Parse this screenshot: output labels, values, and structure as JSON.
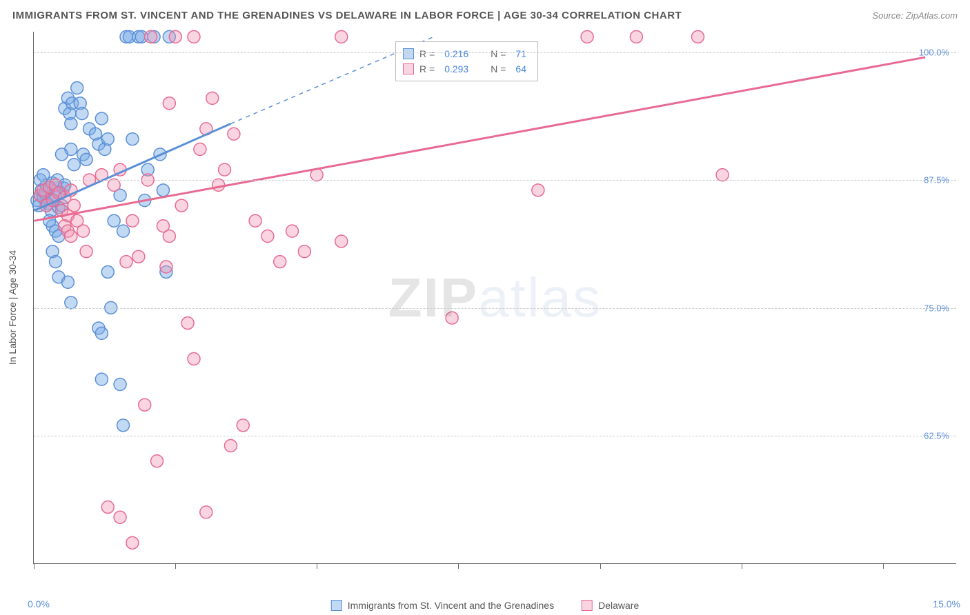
{
  "header": {
    "title": "IMMIGRANTS FROM ST. VINCENT AND THE GRENADINES VS DELAWARE IN LABOR FORCE | AGE 30-34 CORRELATION CHART",
    "source_label": "Source:",
    "source_name": "ZipAtlas.com"
  },
  "chart": {
    "type": "scatter",
    "background_color": "#ffffff",
    "grid_color": "#cccccc",
    "axis_color": "#666666",
    "y_axis_title": "In Labor Force | Age 30-34",
    "xlim": [
      0,
      15
    ],
    "ylim": [
      50,
      102
    ],
    "yticks": [
      62.5,
      75.0,
      87.5,
      100.0
    ],
    "ytick_labels": [
      "62.5%",
      "75.0%",
      "87.5%",
      "100.0%"
    ],
    "xtick_positions": [
      0,
      2.3,
      4.6,
      6.9,
      9.2,
      11.5,
      13.8
    ],
    "x_min_label": "0.0%",
    "x_max_label": "15.0%",
    "marker_radius": 9,
    "marker_stroke_width": 1.5,
    "trend_line_width": 3,
    "watermark_text_a": "ZIP",
    "watermark_text_b": "atlas"
  },
  "series": [
    {
      "key": "svg_immigrants",
      "label": "Immigrants from St. Vincent and the Grenadines",
      "fill_color": "rgba(120,170,230,0.45)",
      "stroke_color": "#5b8fd6",
      "r_value": "0.216",
      "n_value": "71",
      "trend": {
        "x1": 0,
        "y1": 84.5,
        "x2": 3.2,
        "y2": 93.0,
        "dash_extend_x": 6.5,
        "dash_extend_y": 101.5
      },
      "points": [
        [
          0.05,
          85.5
        ],
        [
          0.08,
          85.0
        ],
        [
          0.1,
          86.0
        ],
        [
          0.12,
          86.5
        ],
        [
          0.15,
          85.8
        ],
        [
          0.18,
          86.2
        ],
        [
          0.2,
          87.0
        ],
        [
          0.22,
          85.2
        ],
        [
          0.25,
          86.8
        ],
        [
          0.28,
          84.5
        ],
        [
          0.3,
          87.2
        ],
        [
          0.32,
          85.5
        ],
        [
          0.35,
          86.0
        ],
        [
          0.38,
          87.5
        ],
        [
          0.4,
          84.8
        ],
        [
          0.42,
          86.3
        ],
        [
          0.45,
          85.0
        ],
        [
          0.48,
          86.7
        ],
        [
          0.5,
          87.0
        ],
        [
          0.3,
          83.0
        ],
        [
          0.35,
          82.5
        ],
        [
          0.25,
          83.5
        ],
        [
          0.4,
          82.0
        ],
        [
          0.5,
          94.5
        ],
        [
          0.55,
          95.5
        ],
        [
          0.58,
          94.0
        ],
        [
          0.6,
          93.0
        ],
        [
          0.62,
          95.0
        ],
        [
          0.75,
          95.0
        ],
        [
          0.78,
          94.0
        ],
        [
          0.7,
          96.5
        ],
        [
          0.8,
          90.0
        ],
        [
          0.85,
          89.5
        ],
        [
          0.6,
          90.5
        ],
        [
          0.65,
          89.0
        ],
        [
          0.45,
          90.0
        ],
        [
          0.9,
          92.5
        ],
        [
          1.0,
          92.0
        ],
        [
          1.05,
          91.0
        ],
        [
          1.1,
          93.5
        ],
        [
          1.15,
          90.5
        ],
        [
          1.2,
          91.5
        ],
        [
          1.3,
          83.5
        ],
        [
          1.4,
          86.0
        ],
        [
          1.45,
          82.5
        ],
        [
          1.5,
          101.5
        ],
        [
          1.55,
          101.5
        ],
        [
          1.6,
          91.5
        ],
        [
          1.7,
          101.5
        ],
        [
          1.75,
          101.5
        ],
        [
          1.8,
          85.5
        ],
        [
          1.85,
          88.5
        ],
        [
          1.95,
          101.5
        ],
        [
          2.05,
          90.0
        ],
        [
          2.1,
          86.5
        ],
        [
          2.15,
          78.5
        ],
        [
          2.2,
          101.5
        ],
        [
          0.3,
          80.5
        ],
        [
          0.35,
          79.5
        ],
        [
          0.4,
          78.0
        ],
        [
          0.55,
          77.5
        ],
        [
          0.6,
          75.5
        ],
        [
          1.05,
          73.0
        ],
        [
          1.1,
          72.5
        ],
        [
          1.2,
          78.5
        ],
        [
          1.25,
          75.0
        ],
        [
          1.1,
          68.0
        ],
        [
          1.4,
          67.5
        ],
        [
          1.45,
          63.5
        ],
        [
          0.1,
          87.5
        ],
        [
          0.15,
          88.0
        ]
      ]
    },
    {
      "key": "delaware",
      "label": "Delaware",
      "fill_color": "rgba(240,150,180,0.40)",
      "stroke_color": "#e86a92",
      "r_value": "0.293",
      "n_value": "64",
      "trend": {
        "x1": 0,
        "y1": 83.5,
        "x2": 14.5,
        "y2": 99.5
      },
      "points": [
        [
          0.1,
          86.0
        ],
        [
          0.15,
          86.5
        ],
        [
          0.2,
          85.0
        ],
        [
          0.25,
          86.8
        ],
        [
          0.3,
          85.5
        ],
        [
          0.35,
          87.0
        ],
        [
          0.4,
          86.2
        ],
        [
          0.45,
          84.5
        ],
        [
          0.5,
          85.8
        ],
        [
          0.55,
          84.0
        ],
        [
          0.6,
          86.5
        ],
        [
          0.65,
          85.0
        ],
        [
          0.7,
          83.5
        ],
        [
          0.5,
          83.0
        ],
        [
          0.55,
          82.5
        ],
        [
          0.6,
          82.0
        ],
        [
          0.8,
          82.5
        ],
        [
          0.85,
          80.5
        ],
        [
          0.9,
          87.5
        ],
        [
          1.1,
          88.0
        ],
        [
          1.3,
          87.0
        ],
        [
          1.4,
          88.5
        ],
        [
          1.5,
          79.5
        ],
        [
          1.6,
          83.5
        ],
        [
          1.7,
          80.0
        ],
        [
          1.85,
          87.5
        ],
        [
          1.9,
          101.5
        ],
        [
          2.1,
          83.0
        ],
        [
          2.15,
          79.0
        ],
        [
          2.2,
          95.0
        ],
        [
          2.2,
          82.0
        ],
        [
          2.3,
          101.5
        ],
        [
          2.4,
          85.0
        ],
        [
          2.5,
          73.5
        ],
        [
          2.6,
          101.5
        ],
        [
          2.6,
          70.0
        ],
        [
          2.7,
          90.5
        ],
        [
          2.8,
          92.5
        ],
        [
          2.9,
          95.5
        ],
        [
          3.0,
          87.0
        ],
        [
          3.1,
          88.5
        ],
        [
          3.2,
          61.5
        ],
        [
          3.25,
          92.0
        ],
        [
          3.4,
          63.5
        ],
        [
          3.6,
          83.5
        ],
        [
          3.8,
          82.0
        ],
        [
          4.0,
          79.5
        ],
        [
          4.2,
          82.5
        ],
        [
          4.4,
          80.5
        ],
        [
          4.6,
          88.0
        ],
        [
          5.0,
          81.5
        ],
        [
          5.0,
          101.5
        ],
        [
          6.8,
          74.0
        ],
        [
          8.2,
          86.5
        ],
        [
          9.0,
          101.5
        ],
        [
          9.8,
          101.5
        ],
        [
          10.8,
          101.5
        ],
        [
          11.2,
          88.0
        ],
        [
          1.2,
          55.5
        ],
        [
          1.4,
          54.5
        ],
        [
          1.6,
          52.0
        ],
        [
          2.8,
          55.0
        ],
        [
          1.8,
          65.5
        ],
        [
          2.0,
          60.0
        ]
      ]
    }
  ],
  "stats_legend": {
    "r_label": "R",
    "n_label": "N",
    "equals": " = "
  },
  "bottom_legend": {
    "items": [
      "svg_immigrants",
      "delaware"
    ]
  }
}
